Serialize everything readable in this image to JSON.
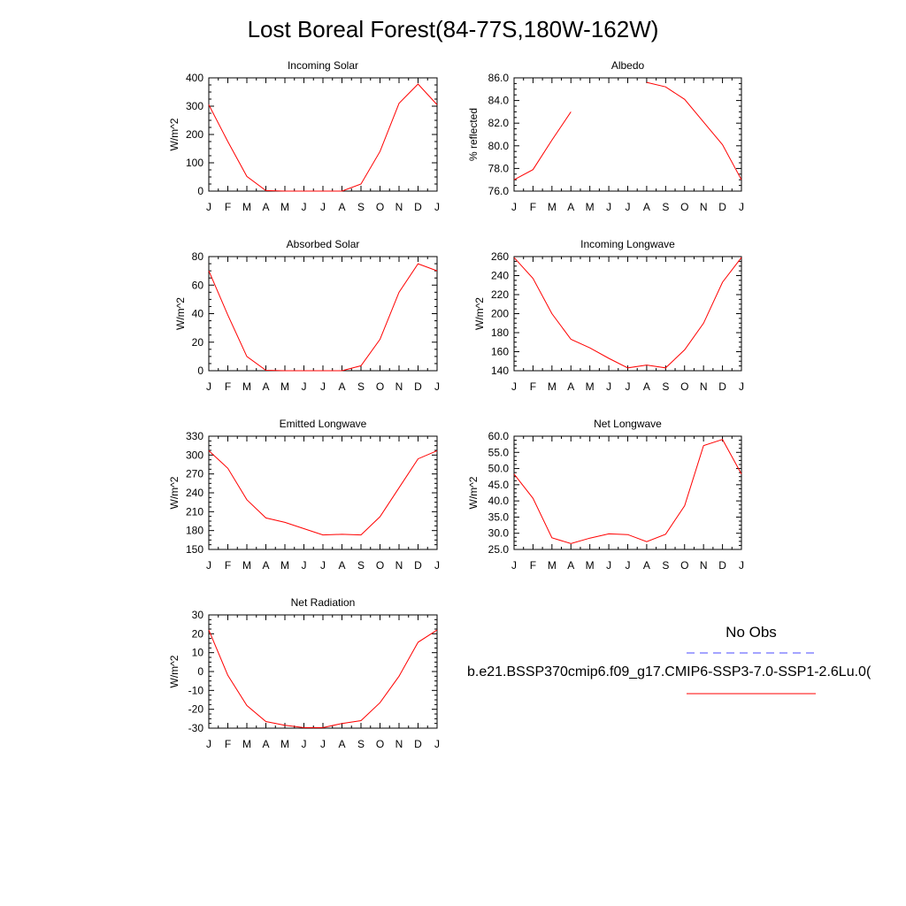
{
  "title": "Lost Boreal Forest(84-77S,180W-162W)",
  "months": [
    "J",
    "F",
    "M",
    "A",
    "M",
    "J",
    "J",
    "A",
    "S",
    "O",
    "N",
    "D",
    "J"
  ],
  "colors": {
    "model": "#ff0000",
    "obs": "#0000ff",
    "axis": "#000000"
  },
  "legend": {
    "obs_label": "No Obs",
    "run_label": "b.e21.BSSP370cmip6.f09_g17.CMIP6-SSP3-7.0-SSP1-2.6Lu.0("
  },
  "chart_data": [
    {
      "type": "line",
      "title": "Incoming Solar",
      "ylabel": "W/m^2",
      "ylim": [
        0,
        400
      ],
      "yticks": [
        0,
        100,
        200,
        300,
        400
      ],
      "ytick_labels": [
        "0",
        "100",
        "200",
        "300",
        "400"
      ],
      "series": [
        {
          "values": [
            305,
            175,
            52,
            2,
            0,
            0,
            0,
            0,
            25,
            140,
            310,
            378,
            305
          ]
        }
      ]
    },
    {
      "type": "line",
      "title": "Albedo",
      "ylabel": "% reflected",
      "ylim": [
        76.0,
        86.0
      ],
      "yticks": [
        76,
        78,
        80,
        82,
        84,
        86
      ],
      "ytick_labels": [
        "76.0",
        "78.0",
        "80.0",
        "82.0",
        "84.0",
        "86.0"
      ],
      "series": [
        {
          "values": [
            77.0,
            77.9,
            80.5,
            83.0,
            null,
            null,
            null,
            85.6,
            85.2,
            84.1,
            82.1,
            80.1,
            77.0
          ]
        }
      ]
    },
    {
      "type": "line",
      "title": "Absorbed Solar",
      "ylabel": "W/m^2",
      "ylim": [
        0,
        80
      ],
      "yticks": [
        0,
        20,
        40,
        60,
        80
      ],
      "ytick_labels": [
        "0",
        "20",
        "40",
        "60",
        "80"
      ],
      "series": [
        {
          "values": [
            70,
            39,
            10,
            0.3,
            0,
            0,
            0,
            0,
            3.5,
            22,
            55,
            75,
            70
          ]
        }
      ]
    },
    {
      "type": "line",
      "title": "Incoming Longwave",
      "ylabel": "W/m^2",
      "ylim": [
        140,
        260
      ],
      "yticks": [
        140,
        160,
        180,
        200,
        220,
        240,
        260
      ],
      "ytick_labels": [
        "140",
        "160",
        "180",
        "200",
        "220",
        "240",
        "260"
      ],
      "series": [
        {
          "values": [
            259,
            237,
            200,
            173,
            164,
            153,
            143,
            146,
            143,
            162,
            190,
            233,
            259
          ]
        }
      ]
    },
    {
      "type": "line",
      "title": "Emitted Longwave",
      "ylabel": "W/m^2",
      "ylim": [
        150,
        330
      ],
      "yticks": [
        150,
        180,
        210,
        240,
        270,
        300,
        330
      ],
      "ytick_labels": [
        "150",
        "180",
        "210",
        "240",
        "270",
        "300",
        "330"
      ],
      "series": [
        {
          "values": [
            307,
            279,
            229,
            200,
            193,
            183,
            173,
            174,
            173,
            202,
            248,
            294,
            307
          ]
        }
      ]
    },
    {
      "type": "line",
      "title": "Net Longwave",
      "ylabel": "W/m^2",
      "ylim": [
        25.0,
        60.0
      ],
      "yticks": [
        25,
        30,
        35,
        40,
        45,
        50,
        55,
        60
      ],
      "ytick_labels": [
        "25.0",
        "30.0",
        "35.0",
        "40.0",
        "45.0",
        "50.0",
        "55.0",
        "60.0"
      ],
      "series": [
        {
          "values": [
            48.3,
            40.8,
            28.6,
            26.8,
            28.5,
            29.8,
            29.6,
            27.4,
            29.7,
            38.5,
            57.1,
            59.0,
            48.3
          ]
        }
      ]
    },
    {
      "type": "line",
      "title": "Net Radiation",
      "ylabel": "W/m^2",
      "ylim": [
        -30,
        30
      ],
      "yticks": [
        -30,
        -20,
        -10,
        0,
        10,
        20,
        30
      ],
      "ytick_labels": [
        "-30",
        "-20",
        "-10",
        "0",
        "10",
        "20",
        "30"
      ],
      "series": [
        {
          "values": [
            22,
            -2,
            -18,
            -26.5,
            -28.5,
            -29.7,
            -29.7,
            -27.5,
            -26,
            -16.5,
            -2.5,
            15.5,
            22
          ]
        }
      ]
    }
  ]
}
